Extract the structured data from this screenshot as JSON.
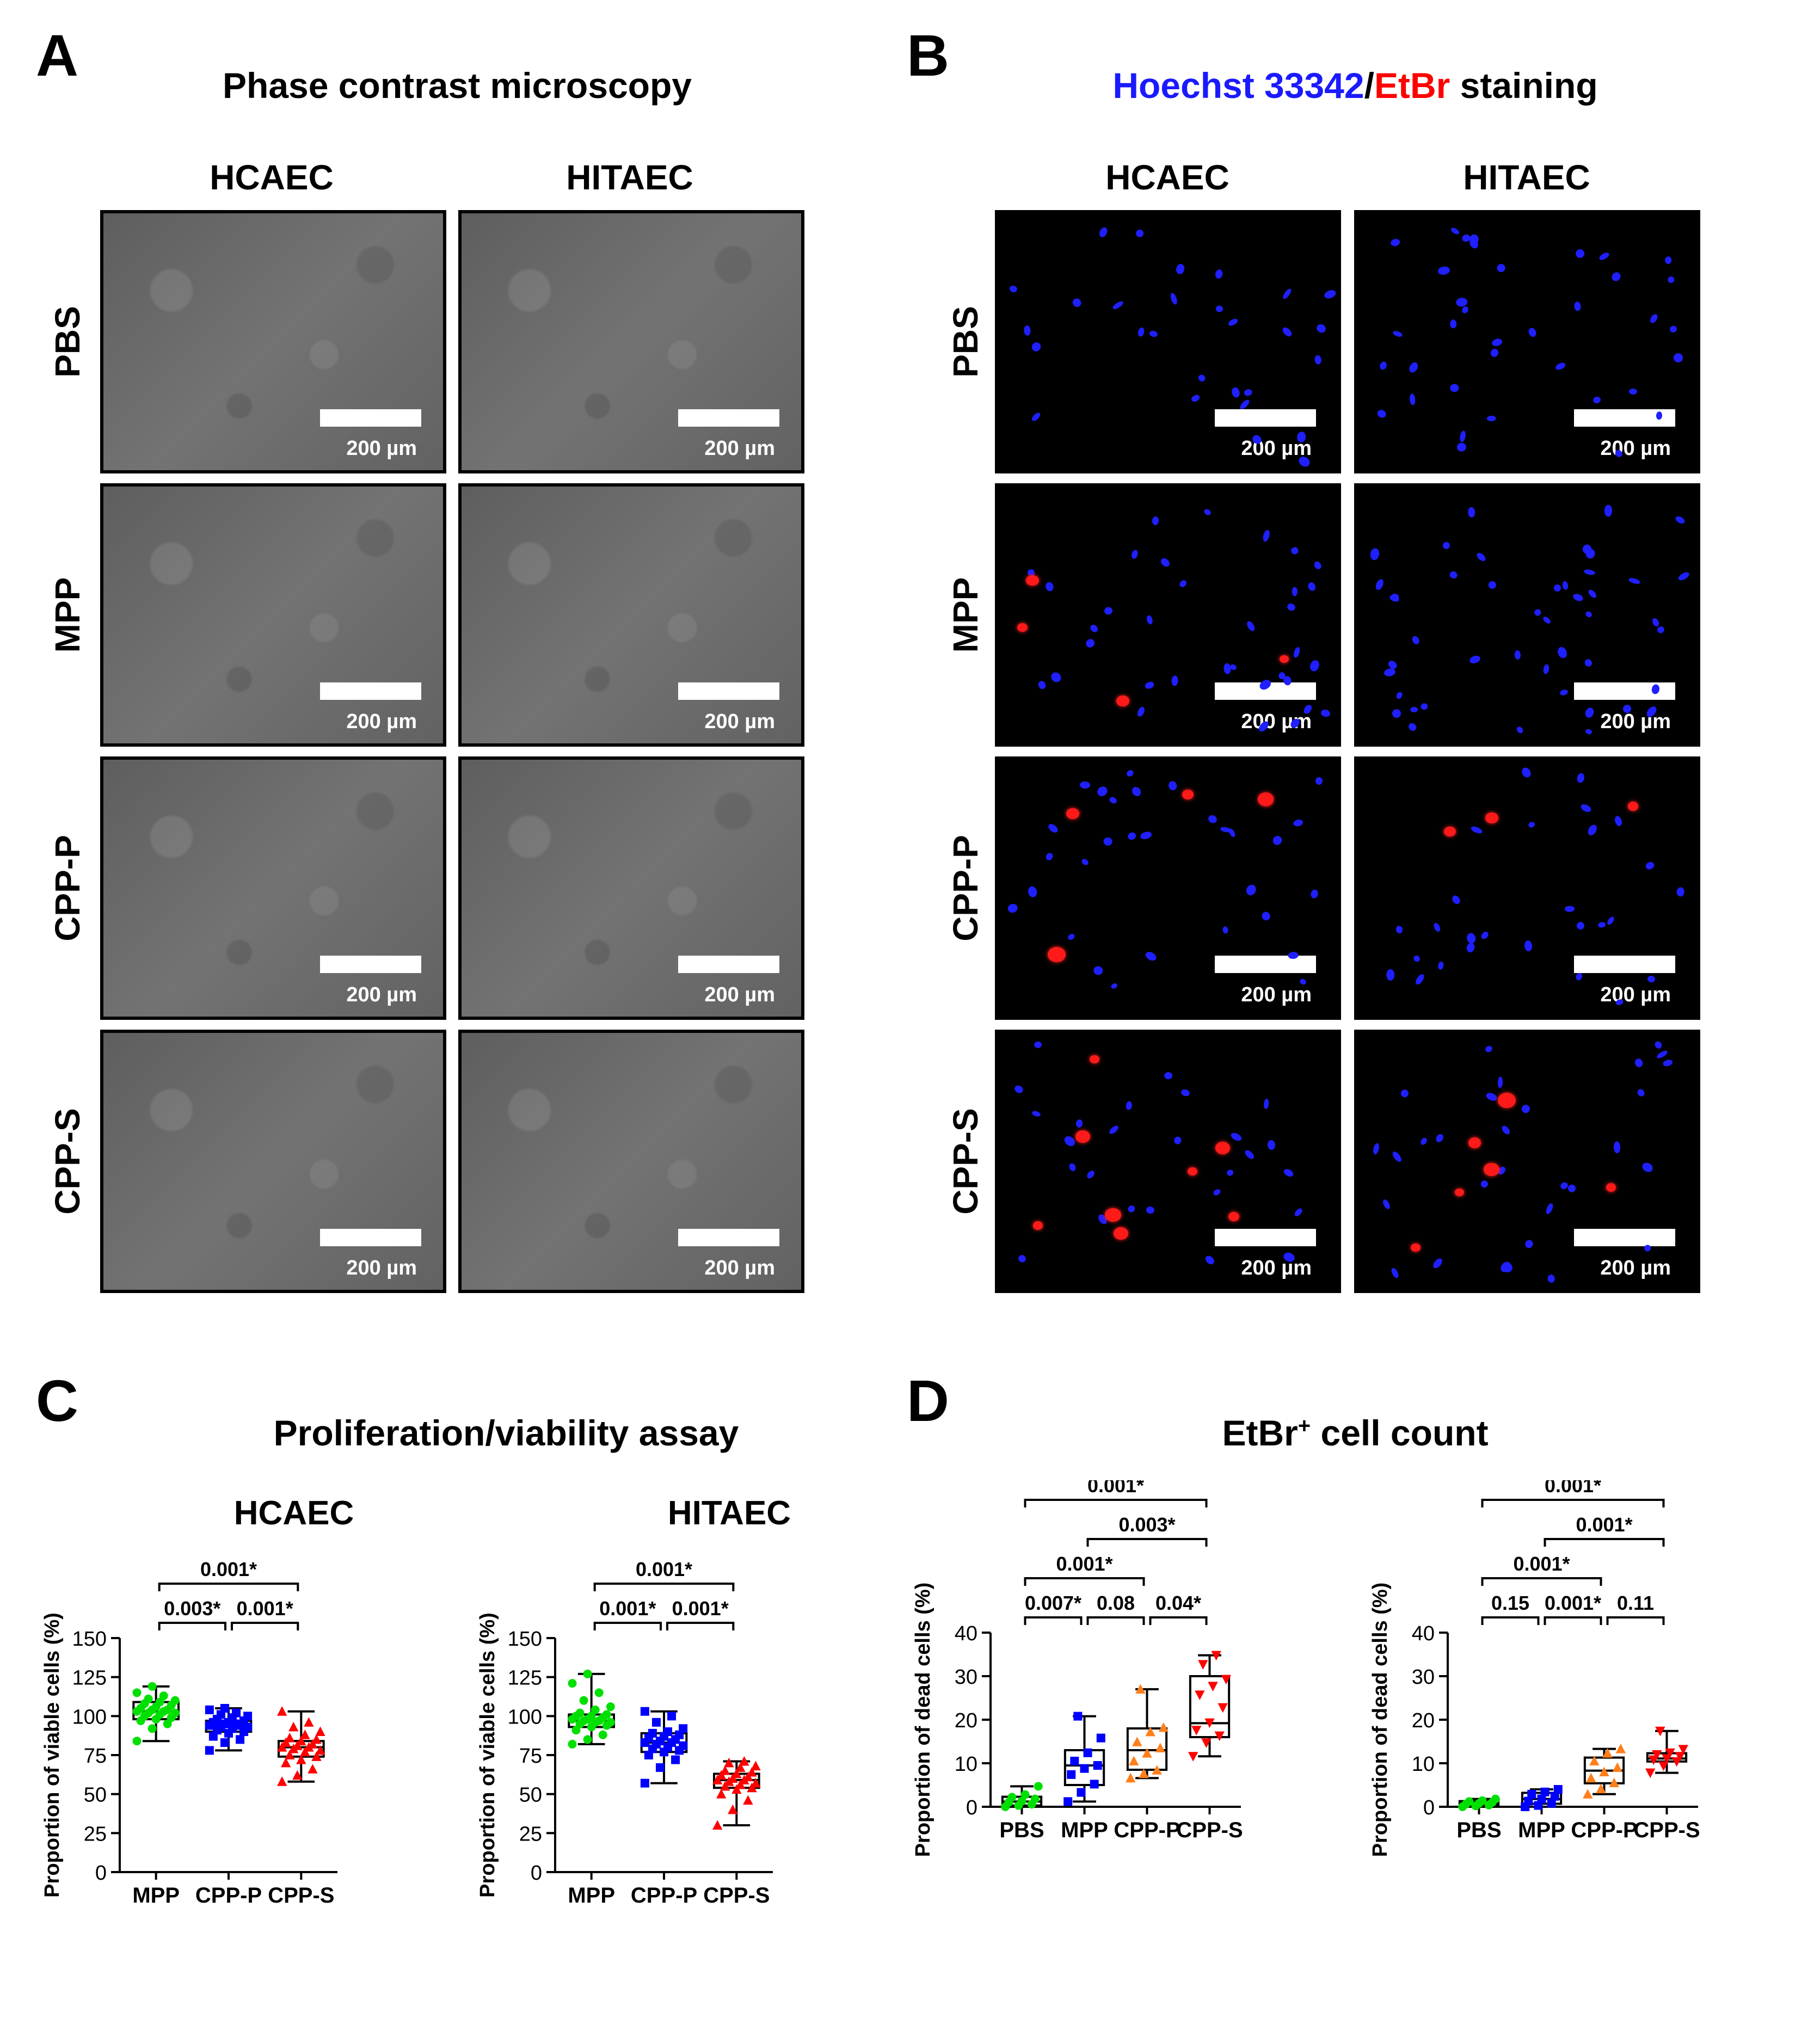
{
  "panels": {
    "a": {
      "letter": "A",
      "title": "Phase contrast microscopy"
    },
    "b": {
      "letter": "B",
      "title_hoechst": "Hoechst 33342",
      "title_sep": "/",
      "title_etbr": "EtBr",
      "title_rest": " staining"
    },
    "c": {
      "letter": "C",
      "title": "Proliferation/viability assay"
    },
    "d": {
      "letter": "D",
      "title": "EtBr",
      "title_sup": "+",
      "title_rest": " cell count"
    }
  },
  "columns": {
    "hcaec": "HCAEC",
    "hitaec": "HITAEC"
  },
  "rows": [
    "PBS",
    "MPP",
    "CPP-P",
    "CPP-S"
  ],
  "scale_bar_label": "200 µm",
  "colors": {
    "blue": "#0000ff",
    "red": "#ff0000",
    "green": "#00e000",
    "orange": "#ff7f1a",
    "black": "#000000"
  },
  "chart_data": [
    {
      "id": "c1",
      "type": "box",
      "title": "HCAEC",
      "ylabel": "Proportion of viable cells (%)",
      "ylim": [
        0,
        150
      ],
      "yticks": [
        0,
        25,
        50,
        75,
        100,
        125,
        150
      ],
      "categories": [
        "MPP",
        "CPP-P",
        "CPP-S"
      ],
      "colors": [
        "#00e000",
        "#0000ff",
        "#ff0000"
      ],
      "markers": [
        "circle",
        "square",
        "triangle"
      ],
      "boxes": [
        {
          "min": 84,
          "q1": 98,
          "median": 103,
          "q3": 109,
          "max": 119
        },
        {
          "min": 78,
          "q1": 90,
          "median": 94,
          "q3": 97,
          "max": 105
        },
        {
          "min": 58,
          "q1": 74,
          "median": 80,
          "q3": 84,
          "max": 103
        }
      ],
      "points": [
        [
          84,
          92,
          95,
          97,
          98,
          99,
          100,
          101,
          102,
          102,
          103,
          103,
          104,
          104,
          105,
          106,
          107,
          108,
          109,
          110,
          111,
          113,
          115,
          119
        ],
        [
          78,
          83,
          85,
          87,
          89,
          90,
          91,
          92,
          93,
          93,
          94,
          94,
          95,
          95,
          96,
          96,
          97,
          98,
          99,
          100,
          101,
          102,
          104,
          105
        ],
        [
          58,
          62,
          66,
          70,
          72,
          74,
          75,
          77,
          78,
          79,
          80,
          80,
          81,
          82,
          83,
          84,
          85,
          86,
          88,
          90,
          93,
          96,
          103
        ]
      ],
      "comparisons": [
        {
          "from": 0,
          "to": 1,
          "level": 0,
          "label": "0.003*"
        },
        {
          "from": 1,
          "to": 2,
          "level": 0,
          "label": "0.001*"
        },
        {
          "from": 0,
          "to": 2,
          "level": 1,
          "label": "0.001*"
        }
      ]
    },
    {
      "id": "c2",
      "type": "box",
      "title": "HITAEC",
      "ylabel": "Proportion of viable cells (%)",
      "ylim": [
        0,
        150
      ],
      "yticks": [
        0,
        25,
        50,
        75,
        100,
        125,
        150
      ],
      "categories": [
        "MPP",
        "CPP-P",
        "CPP-S"
      ],
      "colors": [
        "#00e000",
        "#0000ff",
        "#ff0000"
      ],
      "markers": [
        "circle",
        "square",
        "triangle"
      ],
      "boxes": [
        {
          "min": 82,
          "q1": 93,
          "median": 97,
          "q3": 101,
          "max": 127
        },
        {
          "min": 57,
          "q1": 77,
          "median": 83,
          "q3": 89,
          "max": 103
        },
        {
          "min": 30,
          "q1": 54,
          "median": 59,
          "q3": 63,
          "max": 71
        }
      ],
      "points": [
        [
          82,
          85,
          88,
          91,
          93,
          94,
          95,
          96,
          96,
          97,
          97,
          98,
          98,
          99,
          100,
          100,
          101,
          102,
          104,
          106,
          110,
          115,
          121,
          127
        ],
        [
          57,
          67,
          72,
          75,
          77,
          78,
          79,
          80,
          81,
          82,
          83,
          83,
          84,
          85,
          86,
          87,
          88,
          89,
          90,
          92,
          96,
          100,
          103
        ],
        [
          30,
          40,
          46,
          50,
          53,
          54,
          55,
          56,
          57,
          58,
          59,
          59,
          60,
          61,
          62,
          63,
          64,
          65,
          67,
          68,
          70,
          71
        ]
      ],
      "comparisons": [
        {
          "from": 0,
          "to": 1,
          "level": 0,
          "label": "0.001*"
        },
        {
          "from": 1,
          "to": 2,
          "level": 0,
          "label": "0.001*"
        },
        {
          "from": 0,
          "to": 2,
          "level": 1,
          "label": "0.001*"
        }
      ]
    },
    {
      "id": "d1",
      "type": "box",
      "title": "",
      "ylabel": "Proportion of dead cells (%)",
      "ylim": [
        0,
        40
      ],
      "yticks": [
        0,
        10,
        20,
        30,
        40
      ],
      "categories": [
        "PBS",
        "MPP",
        "CPP-P",
        "CPP-S"
      ],
      "colors": [
        "#00e000",
        "#0000ff",
        "#ff7f1a",
        "#ff0000"
      ],
      "markers": [
        "circle",
        "square",
        "triangle",
        "triangle-down"
      ],
      "boxes": [
        {
          "min": 0,
          "q1": 0.3,
          "median": 1.2,
          "q3": 2.3,
          "max": 4.7
        },
        {
          "min": 1.2,
          "q1": 5.0,
          "median": 9.5,
          "q3": 13,
          "max": 20.8
        },
        {
          "min": 6.6,
          "q1": 8.5,
          "median": 13,
          "q3": 18,
          "max": 27
        },
        {
          "min": 11.6,
          "q1": 16,
          "median": 19.2,
          "q3": 30,
          "max": 34.8
        }
      ],
      "points": [
        [
          0.0,
          0.3,
          0.6,
          1.0,
          1.3,
          1.8,
          2.2,
          2.8,
          4.7
        ],
        [
          1.2,
          3.3,
          5.2,
          7.4,
          8.8,
          9.5,
          10.5,
          12.4,
          15.8,
          20.8
        ],
        [
          6.6,
          7.6,
          8.4,
          10.5,
          12.3,
          13.5,
          14.9,
          17.2,
          18.2,
          27
        ],
        [
          11.6,
          14.7,
          16.3,
          17.6,
          19.3,
          22.8,
          25.7,
          27.7,
          29.3,
          32.7,
          34.8
        ]
      ],
      "comparisons": [
        {
          "from": 0,
          "to": 1,
          "level": 0,
          "label": "0.007*"
        },
        {
          "from": 1,
          "to": 2,
          "level": 0,
          "label": "0.08"
        },
        {
          "from": 2,
          "to": 3,
          "level": 0,
          "label": "0.04*"
        },
        {
          "from": 0,
          "to": 2,
          "level": 1,
          "label": "0.001*"
        },
        {
          "from": 1,
          "to": 3,
          "level": 2,
          "label": "0.003*"
        },
        {
          "from": 0,
          "to": 3,
          "level": 3,
          "label": "0.001*"
        }
      ]
    },
    {
      "id": "d2",
      "type": "box",
      "title": "",
      "ylabel": "Proportion of dead cells (%)",
      "ylim": [
        0,
        40
      ],
      "yticks": [
        0,
        10,
        20,
        30,
        40
      ],
      "categories": [
        "PBS",
        "MPP",
        "CPP-P",
        "CPP-S"
      ],
      "colors": [
        "#00e000",
        "#0000ff",
        "#ff7f1a",
        "#ff0000"
      ],
      "markers": [
        "circle",
        "square",
        "triangle",
        "triangle-down"
      ],
      "boxes": [
        {
          "min": 0,
          "q1": 0.3,
          "median": 0.8,
          "q3": 1.3,
          "max": 1.8
        },
        {
          "min": 0,
          "q1": 0.7,
          "median": 1.8,
          "q3": 3.2,
          "max": 4.0
        },
        {
          "min": 2.9,
          "q1": 5.4,
          "median": 8.3,
          "q3": 11.3,
          "max": 13.3
        },
        {
          "min": 7.8,
          "q1": 10.4,
          "median": 11.1,
          "q3": 12.3,
          "max": 17.4
        }
      ],
      "points": [
        [
          0.0,
          0.2,
          0.4,
          0.6,
          0.8,
          1.0,
          1.2,
          1.4,
          1.8
        ],
        [
          0.0,
          0.3,
          0.8,
          1.3,
          1.8,
          2.4,
          2.9,
          3.4,
          4.0
        ],
        [
          2.9,
          4.1,
          5.5,
          6.6,
          8.0,
          9.0,
          10.5,
          12.3,
          13.3
        ],
        [
          7.8,
          9.4,
          10.4,
          10.8,
          11.1,
          11.6,
          12.0,
          12.4,
          13.2,
          17.4
        ]
      ],
      "comparisons": [
        {
          "from": 0,
          "to": 1,
          "level": 0,
          "label": "0.15"
        },
        {
          "from": 1,
          "to": 2,
          "level": 0,
          "label": "0.001*"
        },
        {
          "from": 2,
          "to": 3,
          "level": 0,
          "label": "0.11"
        },
        {
          "from": 0,
          "to": 2,
          "level": 1,
          "label": "0.001*"
        },
        {
          "from": 1,
          "to": 3,
          "level": 2,
          "label": "0.001*"
        },
        {
          "from": 0,
          "to": 3,
          "level": 3,
          "label": "0.001*"
        }
      ]
    }
  ]
}
